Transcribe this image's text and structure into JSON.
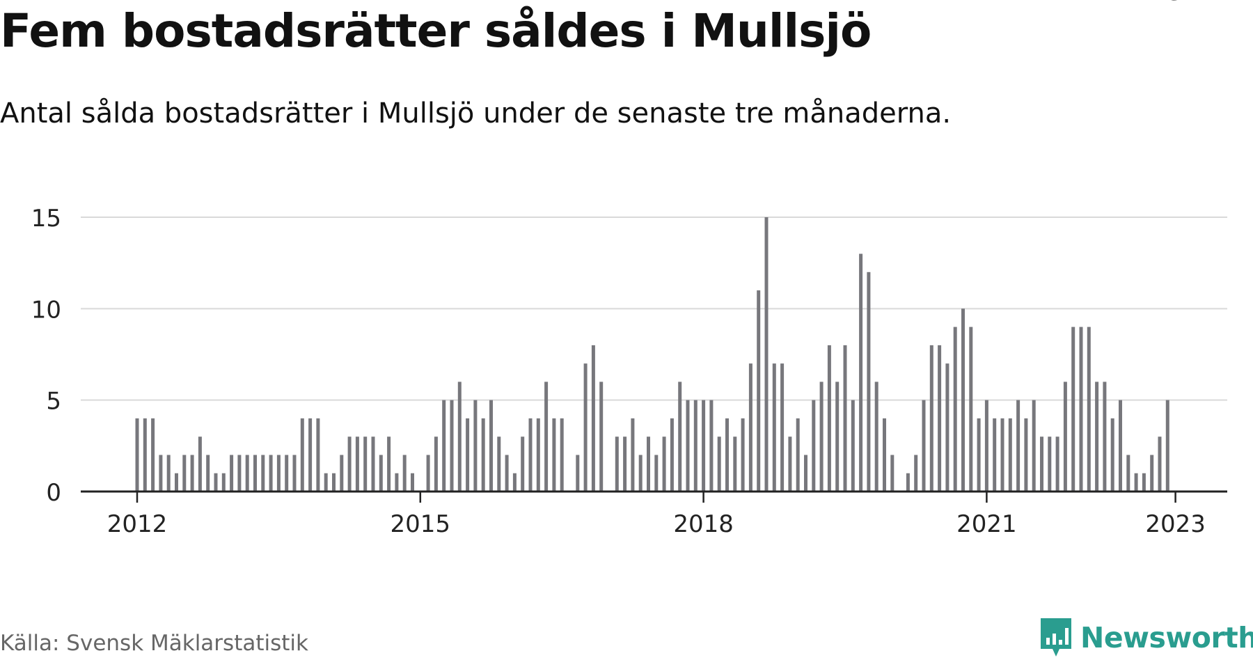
{
  "title": "Fem bostadsrätter såldes i Mullsjö",
  "subtitle": "Antal sålda bostadsrätter i Mullsjö under de senaste tre månaderna.",
  "source": "Källa: Svensk Mäklarstatistik",
  "brand": {
    "name": "Newsworthy",
    "icon": "bar-chart-speech-bubble-icon",
    "color": "#2a9d8f"
  },
  "colors": {
    "bar": "#77777c",
    "highlight": "#1fa295",
    "grid": "#d9d9d9",
    "axis": "#222222"
  },
  "chart_data": {
    "type": "bar",
    "x_start": "2012-01",
    "x_unit": "month",
    "values": [
      4,
      4,
      4,
      2,
      2,
      1,
      2,
      2,
      3,
      2,
      1,
      1,
      2,
      2,
      2,
      2,
      2,
      2,
      2,
      2,
      2,
      4,
      4,
      4,
      1,
      1,
      2,
      3,
      3,
      3,
      3,
      2,
      3,
      1,
      2,
      1,
      0,
      2,
      3,
      5,
      5,
      6,
      4,
      5,
      4,
      5,
      3,
      2,
      1,
      3,
      4,
      4,
      6,
      4,
      4,
      0,
      2,
      7,
      8,
      6,
      0,
      3,
      3,
      4,
      2,
      3,
      2,
      3,
      4,
      6,
      5,
      5,
      5,
      5,
      3,
      4,
      3,
      4,
      7,
      11,
      15,
      7,
      7,
      3,
      4,
      2,
      5,
      6,
      8,
      6,
      8,
      5,
      13,
      12,
      6,
      4,
      2,
      0,
      1,
      2,
      5,
      8,
      8,
      7,
      9,
      10,
      9,
      4,
      5,
      4,
      4,
      4,
      5,
      4,
      5,
      3,
      3,
      3,
      6,
      9,
      9,
      9,
      6,
      6,
      4,
      5,
      2,
      1,
      1,
      2,
      3,
      5
    ],
    "highlight": {
      "label": "5",
      "value": 5,
      "x": "2023-01"
    },
    "xticks": [
      "2012",
      "2015",
      "2018",
      "2021",
      "2023"
    ],
    "yticks": [
      0,
      5,
      10,
      15
    ],
    "ylim": [
      0,
      15.5
    ],
    "grid": true,
    "xlabel": "",
    "ylabel": ""
  }
}
